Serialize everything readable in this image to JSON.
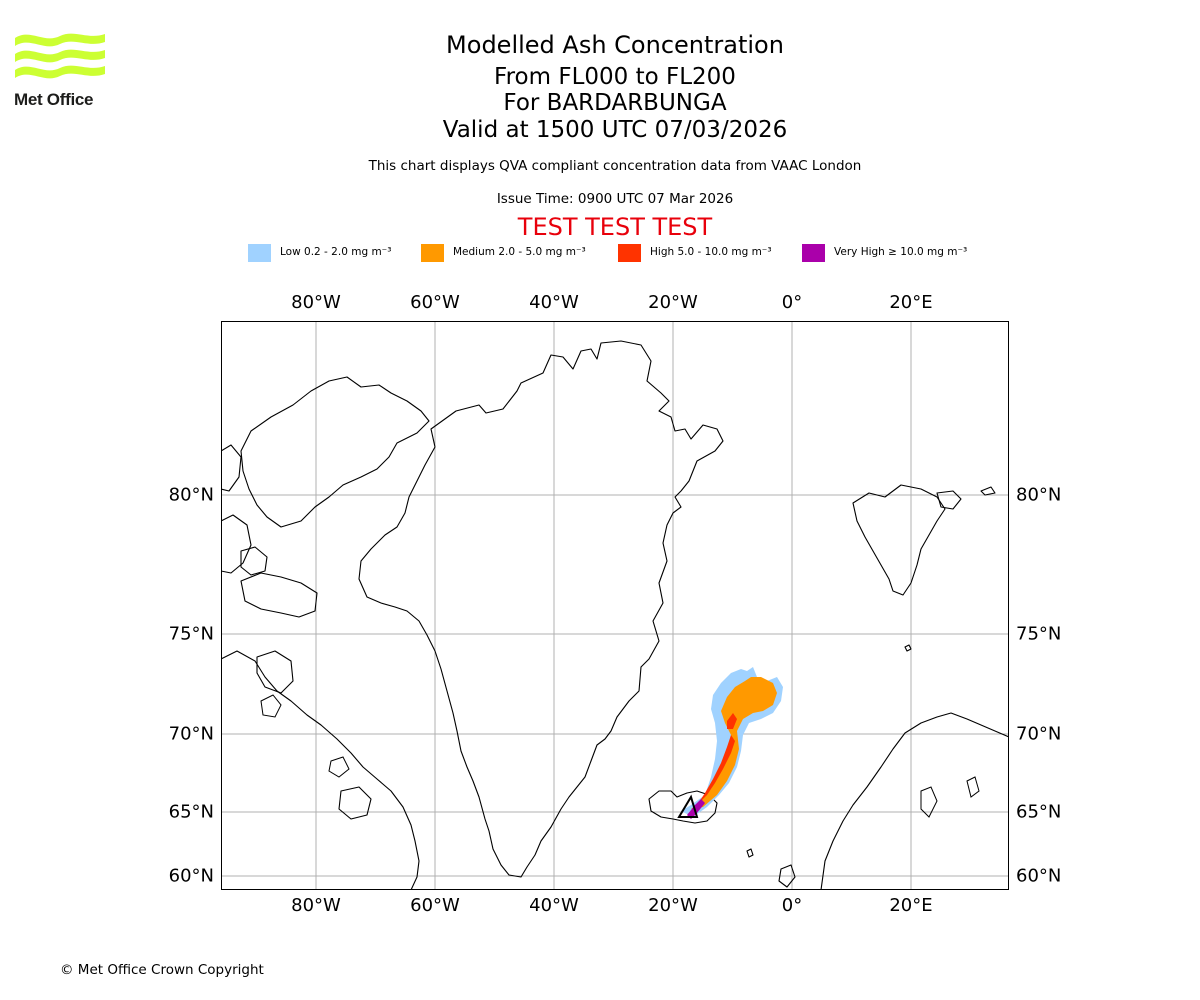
{
  "logo": {
    "text": "Met Office",
    "color": "#ccff33"
  },
  "header": {
    "title": "Modelled Ash Concentration",
    "levels": "From FL000 to FL200",
    "volcano": "For BARDARBUNGA",
    "valid": "Valid at 1500 UTC 07/03/2026",
    "note": "This chart displays QVA compliant concentration data from VAAC London",
    "issue": "Issue Time: 0900 UTC 07 Mar 2026",
    "test": "TEST TEST TEST"
  },
  "legend": [
    {
      "label": "Low 0.2 - 2.0 mg m⁻³",
      "color": "#a0d2ff"
    },
    {
      "label": "Medium 2.0 - 5.0 mg m⁻³",
      "color": "#ff9900"
    },
    {
      "label": "High 5.0 - 10.0 mg m⁻³",
      "color": "#ff3300"
    },
    {
      "label": "Very High ≥ 10.0 mg m⁻³",
      "color": "#aa00aa"
    }
  ],
  "axes": {
    "lon_labels": [
      "80°W",
      "60°W",
      "40°W",
      "20°W",
      "0°",
      "20°E"
    ],
    "lat_labels": [
      "80°N",
      "75°N",
      "70°N",
      "65°N",
      "60°N"
    ]
  },
  "footer": {
    "copyright": "© Met Office Crown Copyright"
  }
}
